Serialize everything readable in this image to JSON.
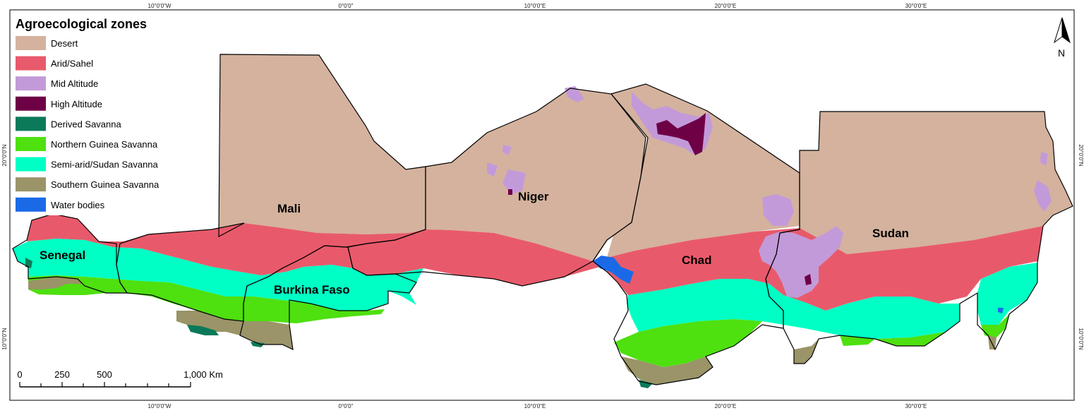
{
  "legend": {
    "title": "Agroecological zones",
    "items": [
      {
        "label": "Desert",
        "color": "#d4b29e"
      },
      {
        "label": "Arid/Sahel",
        "color": "#e85a6b"
      },
      {
        "label": "Mid Altitude",
        "color": "#c39ad9"
      },
      {
        "label": "High Altitude",
        "color": "#6e0046"
      },
      {
        "label": "Derived Savanna",
        "color": "#0b7a5a"
      },
      {
        "label": "Northern Guinea Savanna",
        "color": "#4ee00f"
      },
      {
        "label": "Semi-arid/Sudan Savanna",
        "color": "#00ffc4"
      },
      {
        "label": "Southern Guinea Savanna",
        "color": "#9a9468"
      },
      {
        "label": "Water bodies",
        "color": "#1a6ae8"
      }
    ]
  },
  "graticule": {
    "top": [
      "10°0'0\"W",
      "0°0'0\"",
      "10°0'0\"E",
      "20°0'0\"E",
      "30°0'0\"E"
    ],
    "bottom": [
      "10°0'0\"W",
      "0°0'0\"",
      "10°0'0\"E",
      "20°0'0\"E",
      "30°0'0\"E"
    ],
    "left": [
      "20°0'0\"N",
      "10°0'0\"N"
    ],
    "right": [
      "20°0'0\"N",
      "10°0'0\"N"
    ]
  },
  "countries": {
    "mali": "Mali",
    "niger": "Niger",
    "chad": "Chad",
    "sudan": "Sudan",
    "senegal": "Senegal",
    "burkina": "Burkina Faso"
  },
  "north_arrow": {
    "label": "N"
  },
  "scale_bar": {
    "ticks": [
      "0",
      "250",
      "500",
      "1,000 Km"
    ]
  }
}
